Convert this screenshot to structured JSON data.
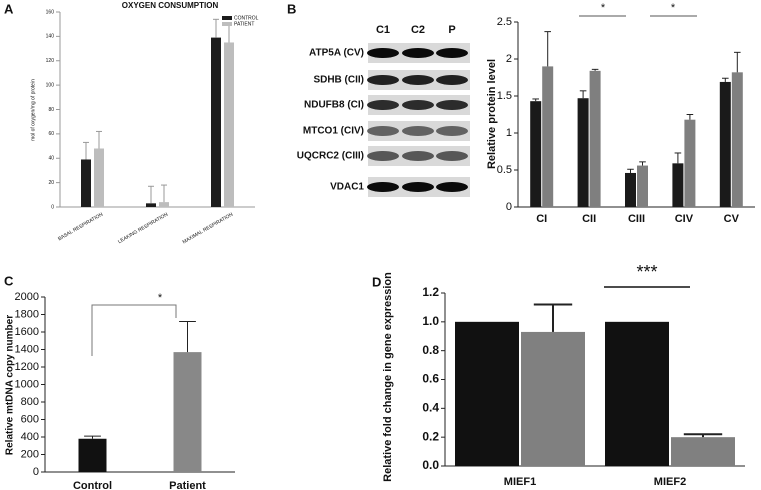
{
  "chart_data": [
    {
      "type": "bar",
      "panel": "A",
      "title": "OXYGEN CONSUMPTION",
      "y_label": "mol of oxygen/mg of protein",
      "categories": [
        "BASAL RESPIRATION",
        "LEAKING RESPIRATION",
        "MAXIMAL RESPIRATION"
      ],
      "series": [
        {
          "name": "CONTROL",
          "color": "#1c1c1c",
          "values": [
            39,
            3,
            139
          ],
          "errors": [
            14,
            14,
            15
          ]
        },
        {
          "name": "PATIENT",
          "color": "#bdbdbd",
          "values": [
            48,
            4,
            135
          ],
          "errors": [
            14,
            14,
            15
          ]
        }
      ],
      "ylim": [
        0,
        160
      ],
      "yticks": [
        0,
        20,
        40,
        60,
        80,
        100,
        120,
        140,
        160
      ],
      "legend": "upper right"
    },
    {
      "type": "bar",
      "panel": "B",
      "y_label": "Relative protein level",
      "categories": [
        "CI",
        "CII",
        "CIII",
        "CIV",
        "CV"
      ],
      "series": [
        {
          "color": "#1a1a1a",
          "values": [
            1.43,
            1.47,
            0.46,
            0.59,
            1.69
          ],
          "errors": [
            0.03,
            0.1,
            0.05,
            0.14,
            0.05
          ]
        },
        {
          "color": "#7f7f7f",
          "values": [
            1.9,
            1.84,
            0.56,
            1.18,
            1.82
          ],
          "errors": [
            0.47,
            0.02,
            0.05,
            0.07,
            0.27
          ]
        }
      ],
      "ylim": [
        0,
        2.5
      ],
      "yticks": [
        0,
        0.5,
        1,
        1.5,
        2,
        2.5
      ],
      "annotations": [
        "*",
        "*"
      ]
    },
    {
      "type": "bar",
      "panel": "C",
      "y_label": "Relative mtDNA copy number",
      "categories": [
        "Control",
        "Patient"
      ],
      "series": [
        {
          "colors": [
            "#111111",
            "#888888"
          ],
          "values": [
            380,
            1370
          ],
          "errors": [
            30,
            350
          ]
        }
      ],
      "ylim": [
        0,
        2000
      ],
      "yticks": [
        0,
        200,
        400,
        600,
        800,
        1000,
        1200,
        1400,
        1600,
        1800,
        2000
      ],
      "annotations": [
        "*"
      ]
    },
    {
      "type": "bar",
      "panel": "D",
      "y_label": "Relative fold change in gene expression",
      "categories": [
        "MIEF1",
        "MIEF2"
      ],
      "series": [
        {
          "color": "#111111",
          "values": [
            1.0,
            1.0
          ]
        },
        {
          "color": "#808080",
          "values": [
            0.93,
            0.2
          ],
          "errors": [
            0.19,
            0.02
          ]
        }
      ],
      "ylim": [
        0,
        1.2
      ],
      "yticks": [
        {
          "value": 0,
          "label": "0.0"
        },
        0.2,
        0.4,
        0.6,
        0.8,
        {
          "value": 1,
          "label": "1.0"
        },
        1.2
      ],
      "annotations": [
        "***"
      ]
    }
  ],
  "blot": {
    "lanes": [
      "C1",
      "C2",
      "P"
    ],
    "proteins": [
      "ATP5A (CV)",
      "SDHB (CII)",
      "NDUFB8 (CI)",
      "MTCO1 (CIV)",
      "UQCRC2 (CIII)",
      "VDAC1"
    ]
  }
}
